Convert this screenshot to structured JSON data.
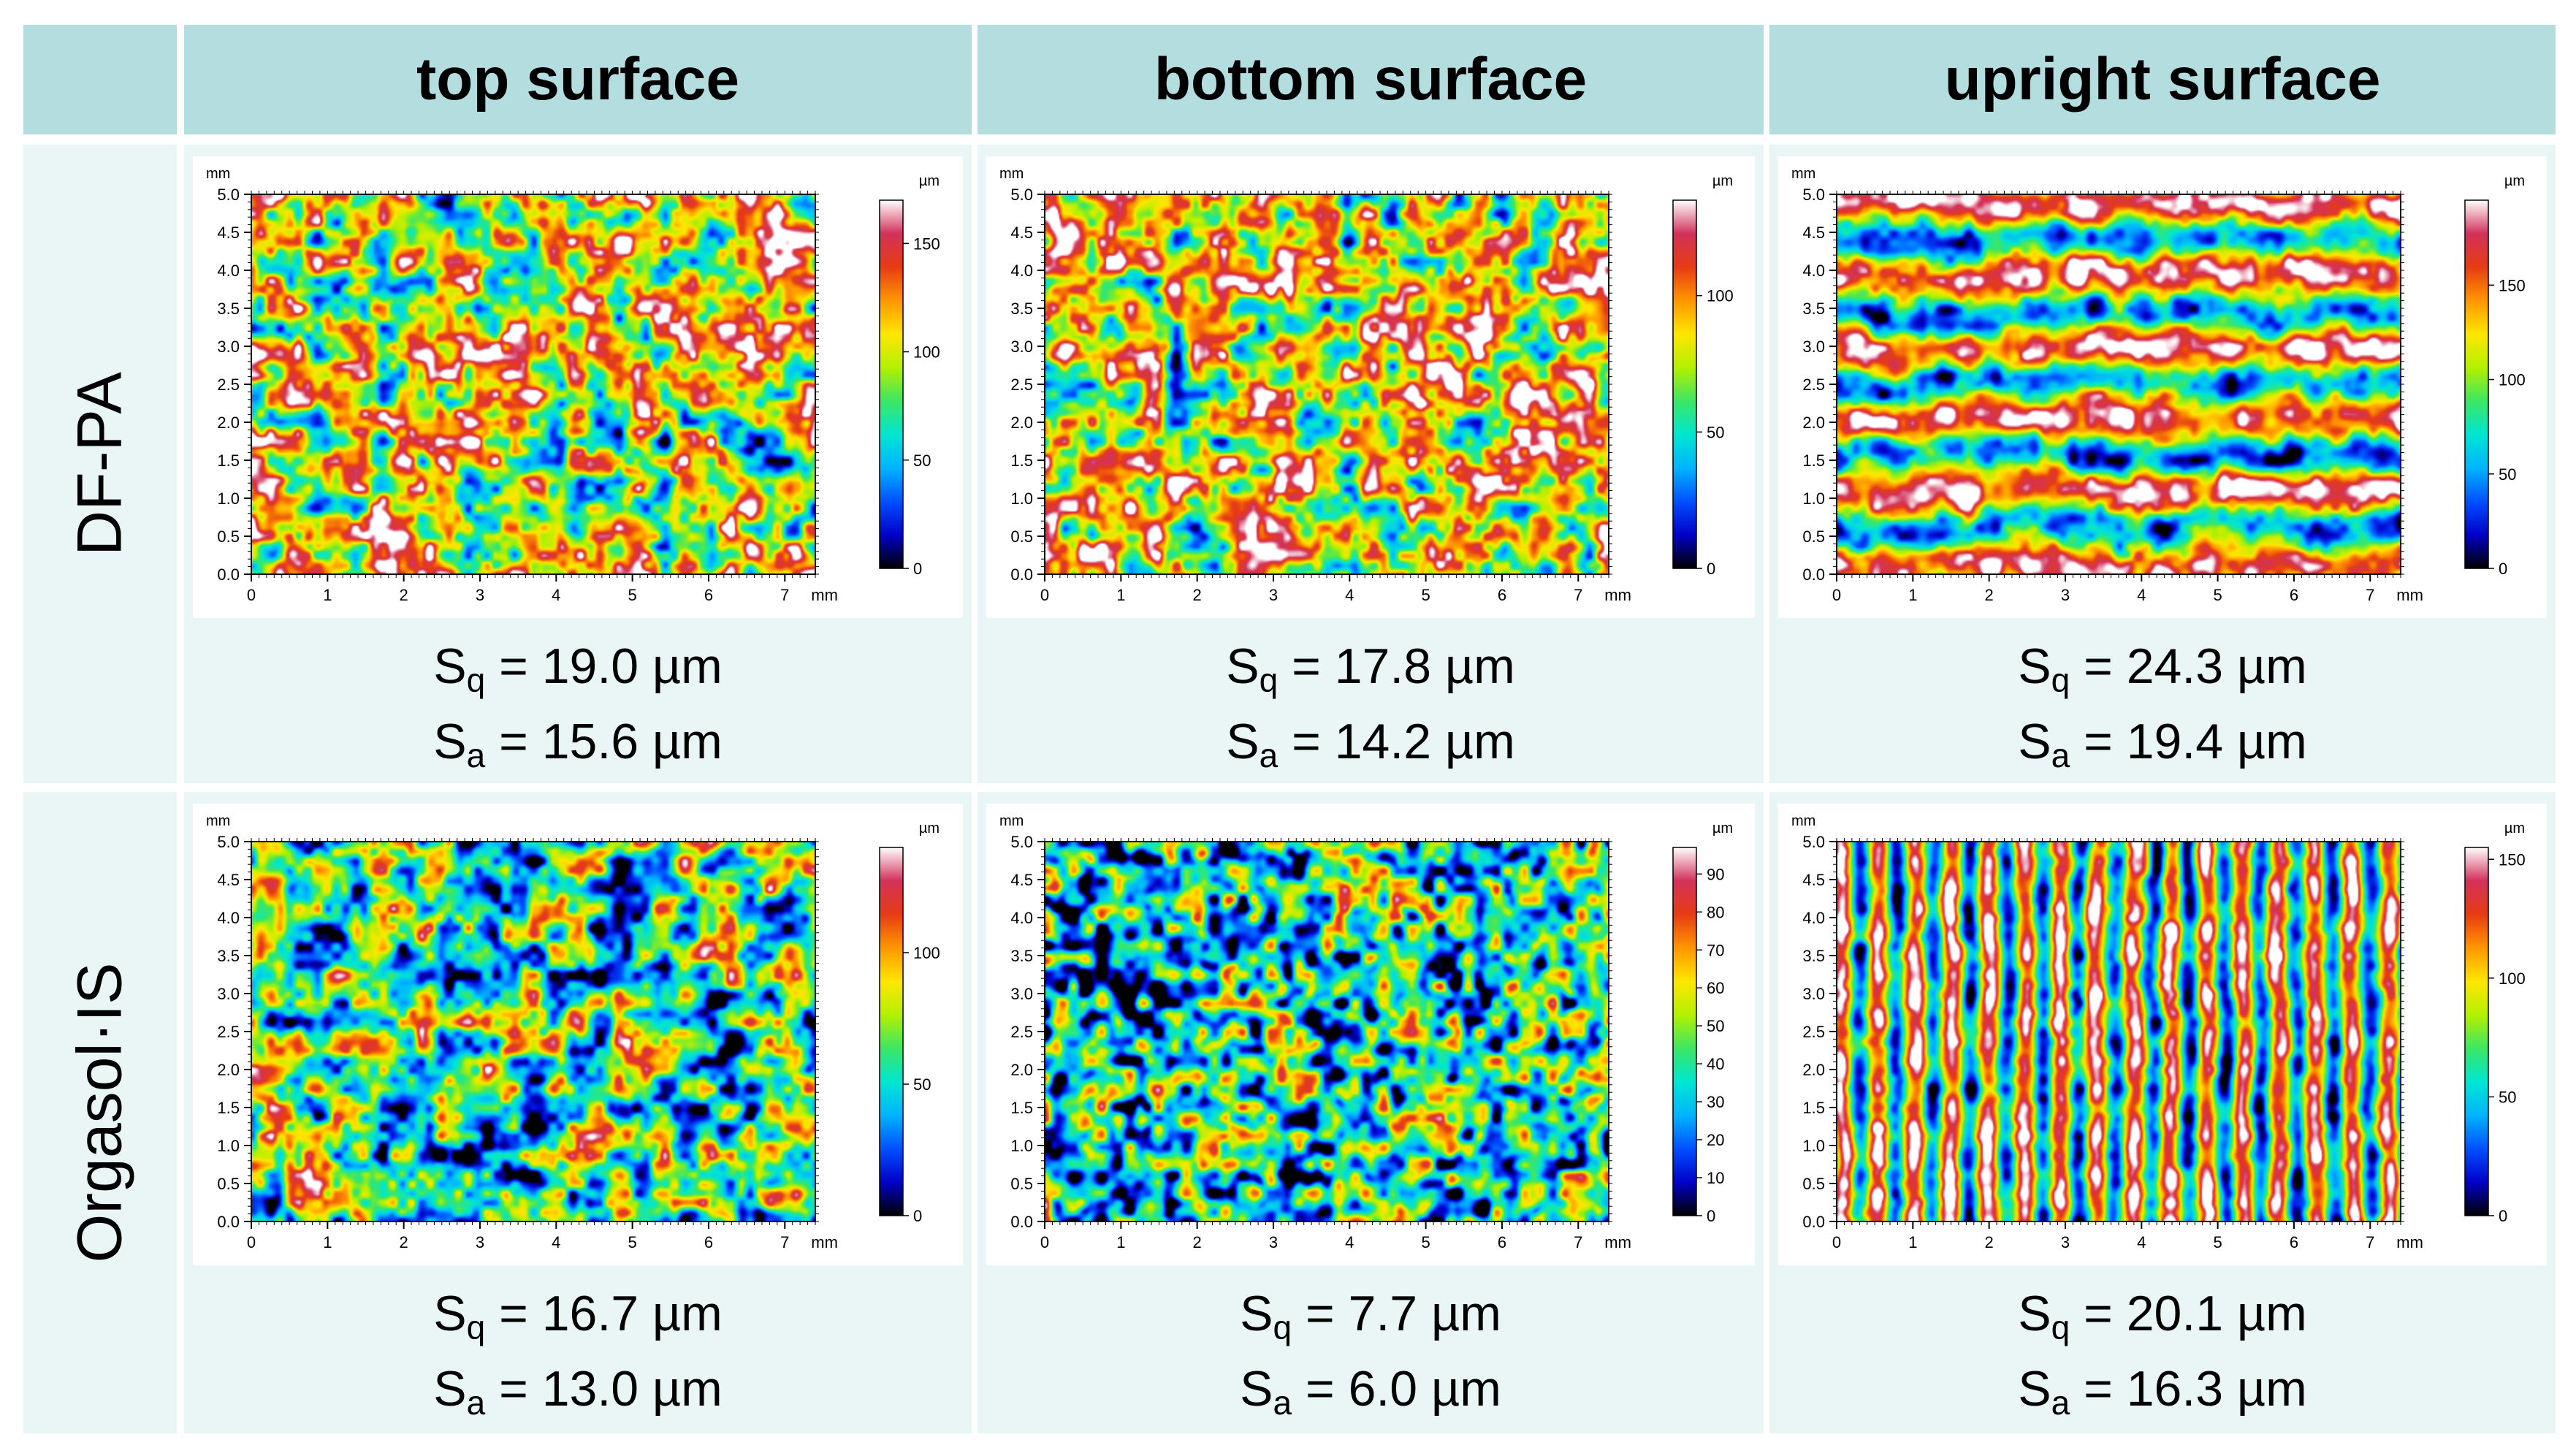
{
  "header": {
    "columns": [
      "top surface",
      "bottom surface",
      "upright surface"
    ]
  },
  "rows": [
    {
      "label": "DF-PA",
      "panels": [
        {
          "surface": "top surface",
          "scale": {
            "unit": "µm",
            "ticks": [
              "150",
              "100",
              "50",
              "0"
            ],
            "max": 170
          },
          "Sq": "19.0 µm",
          "Sa": "15.6 µm",
          "pattern": "blotch",
          "bias": 0.62
        },
        {
          "surface": "bottom surface",
          "scale": {
            "unit": "µm",
            "ticks": [
              "100",
              "50",
              "0"
            ],
            "max": 135
          },
          "Sq": "17.8 µm",
          "Sa": "14.2 µm",
          "pattern": "blotch",
          "bias": 0.66
        },
        {
          "surface": "upright surface",
          "scale": {
            "unit": "µm",
            "ticks": [
              "150",
              "100",
              "50",
              "0"
            ],
            "max": 195
          },
          "Sq": "24.3 µm",
          "Sa": "19.4 µm",
          "pattern": "horizontal",
          "bias": 0.58
        }
      ]
    },
    {
      "label": "Orgasol·IS",
      "panels": [
        {
          "surface": "top surface",
          "scale": {
            "unit": "µm",
            "ticks": [
              "100",
              "50",
              "0"
            ],
            "max": 140
          },
          "Sq": "16.7 µm",
          "Sa": "13.0 µm",
          "pattern": "blotch",
          "bias": 0.45
        },
        {
          "surface": "bottom surface",
          "scale": {
            "unit": "µm",
            "ticks": [
              "90",
              "80",
              "70",
              "60",
              "50",
              "40",
              "30",
              "20",
              "10",
              "0"
            ],
            "max": 97
          },
          "Sq": "7.7 µm",
          "Sa": "6.0 µm",
          "pattern": "fine",
          "bias": 0.34
        },
        {
          "surface": "upright surface",
          "scale": {
            "unit": "µm",
            "ticks": [
              "150",
              "100",
              "50",
              "0"
            ],
            "max": 155
          },
          "Sq": "20.1 µm",
          "Sa": "16.3 µm",
          "pattern": "vertical",
          "bias": 0.55
        }
      ]
    }
  ],
  "axes": {
    "y_unit": "mm",
    "x_unit": "mm",
    "y_ticks": [
      "5.0",
      "4.5",
      "4.0",
      "3.5",
      "3.0",
      "2.5",
      "2.0",
      "1.5",
      "1.0",
      "0.5",
      "0.0"
    ],
    "x_ticks": [
      "0",
      "1",
      "2",
      "3",
      "4",
      "5",
      "6",
      "7"
    ]
  },
  "labels": {
    "sq": "S",
    "sq_sub": "q",
    "sa": "S",
    "sa_sub": "a",
    "eq": " = "
  },
  "colormap": [
    "#000000",
    "#0000c8",
    "#0050ff",
    "#00b4ff",
    "#00e6d2",
    "#3ce664",
    "#b4f000",
    "#ffe600",
    "#ff9600",
    "#e63c14",
    "#d2325a",
    "#ffffff"
  ]
}
